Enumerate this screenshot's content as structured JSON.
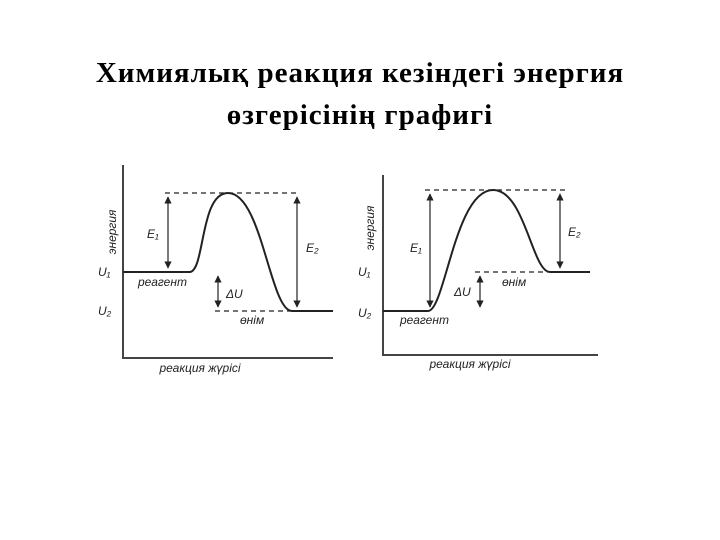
{
  "title": [
    "Химиялық  реакция  кезіндегі  энергия",
    "өзгерісінің  графигі"
  ],
  "diagrams": [
    {
      "y_label": "энергия",
      "x_label": "реакция  жүрісі",
      "u1": "U₁",
      "u2": "U₂",
      "e1": "E₁",
      "e2": "E₂",
      "delta_u": "ΔU",
      "reactant": "реагент",
      "product": "өнім"
    },
    {
      "y_label": "энергия",
      "x_label": "реакция  жүрісі",
      "u1": "U₁",
      "u2": "U₂",
      "e1": "E₁",
      "e2": "E₂",
      "delta_u": "ΔU",
      "reactant": "реагент",
      "product": "өнім"
    }
  ]
}
